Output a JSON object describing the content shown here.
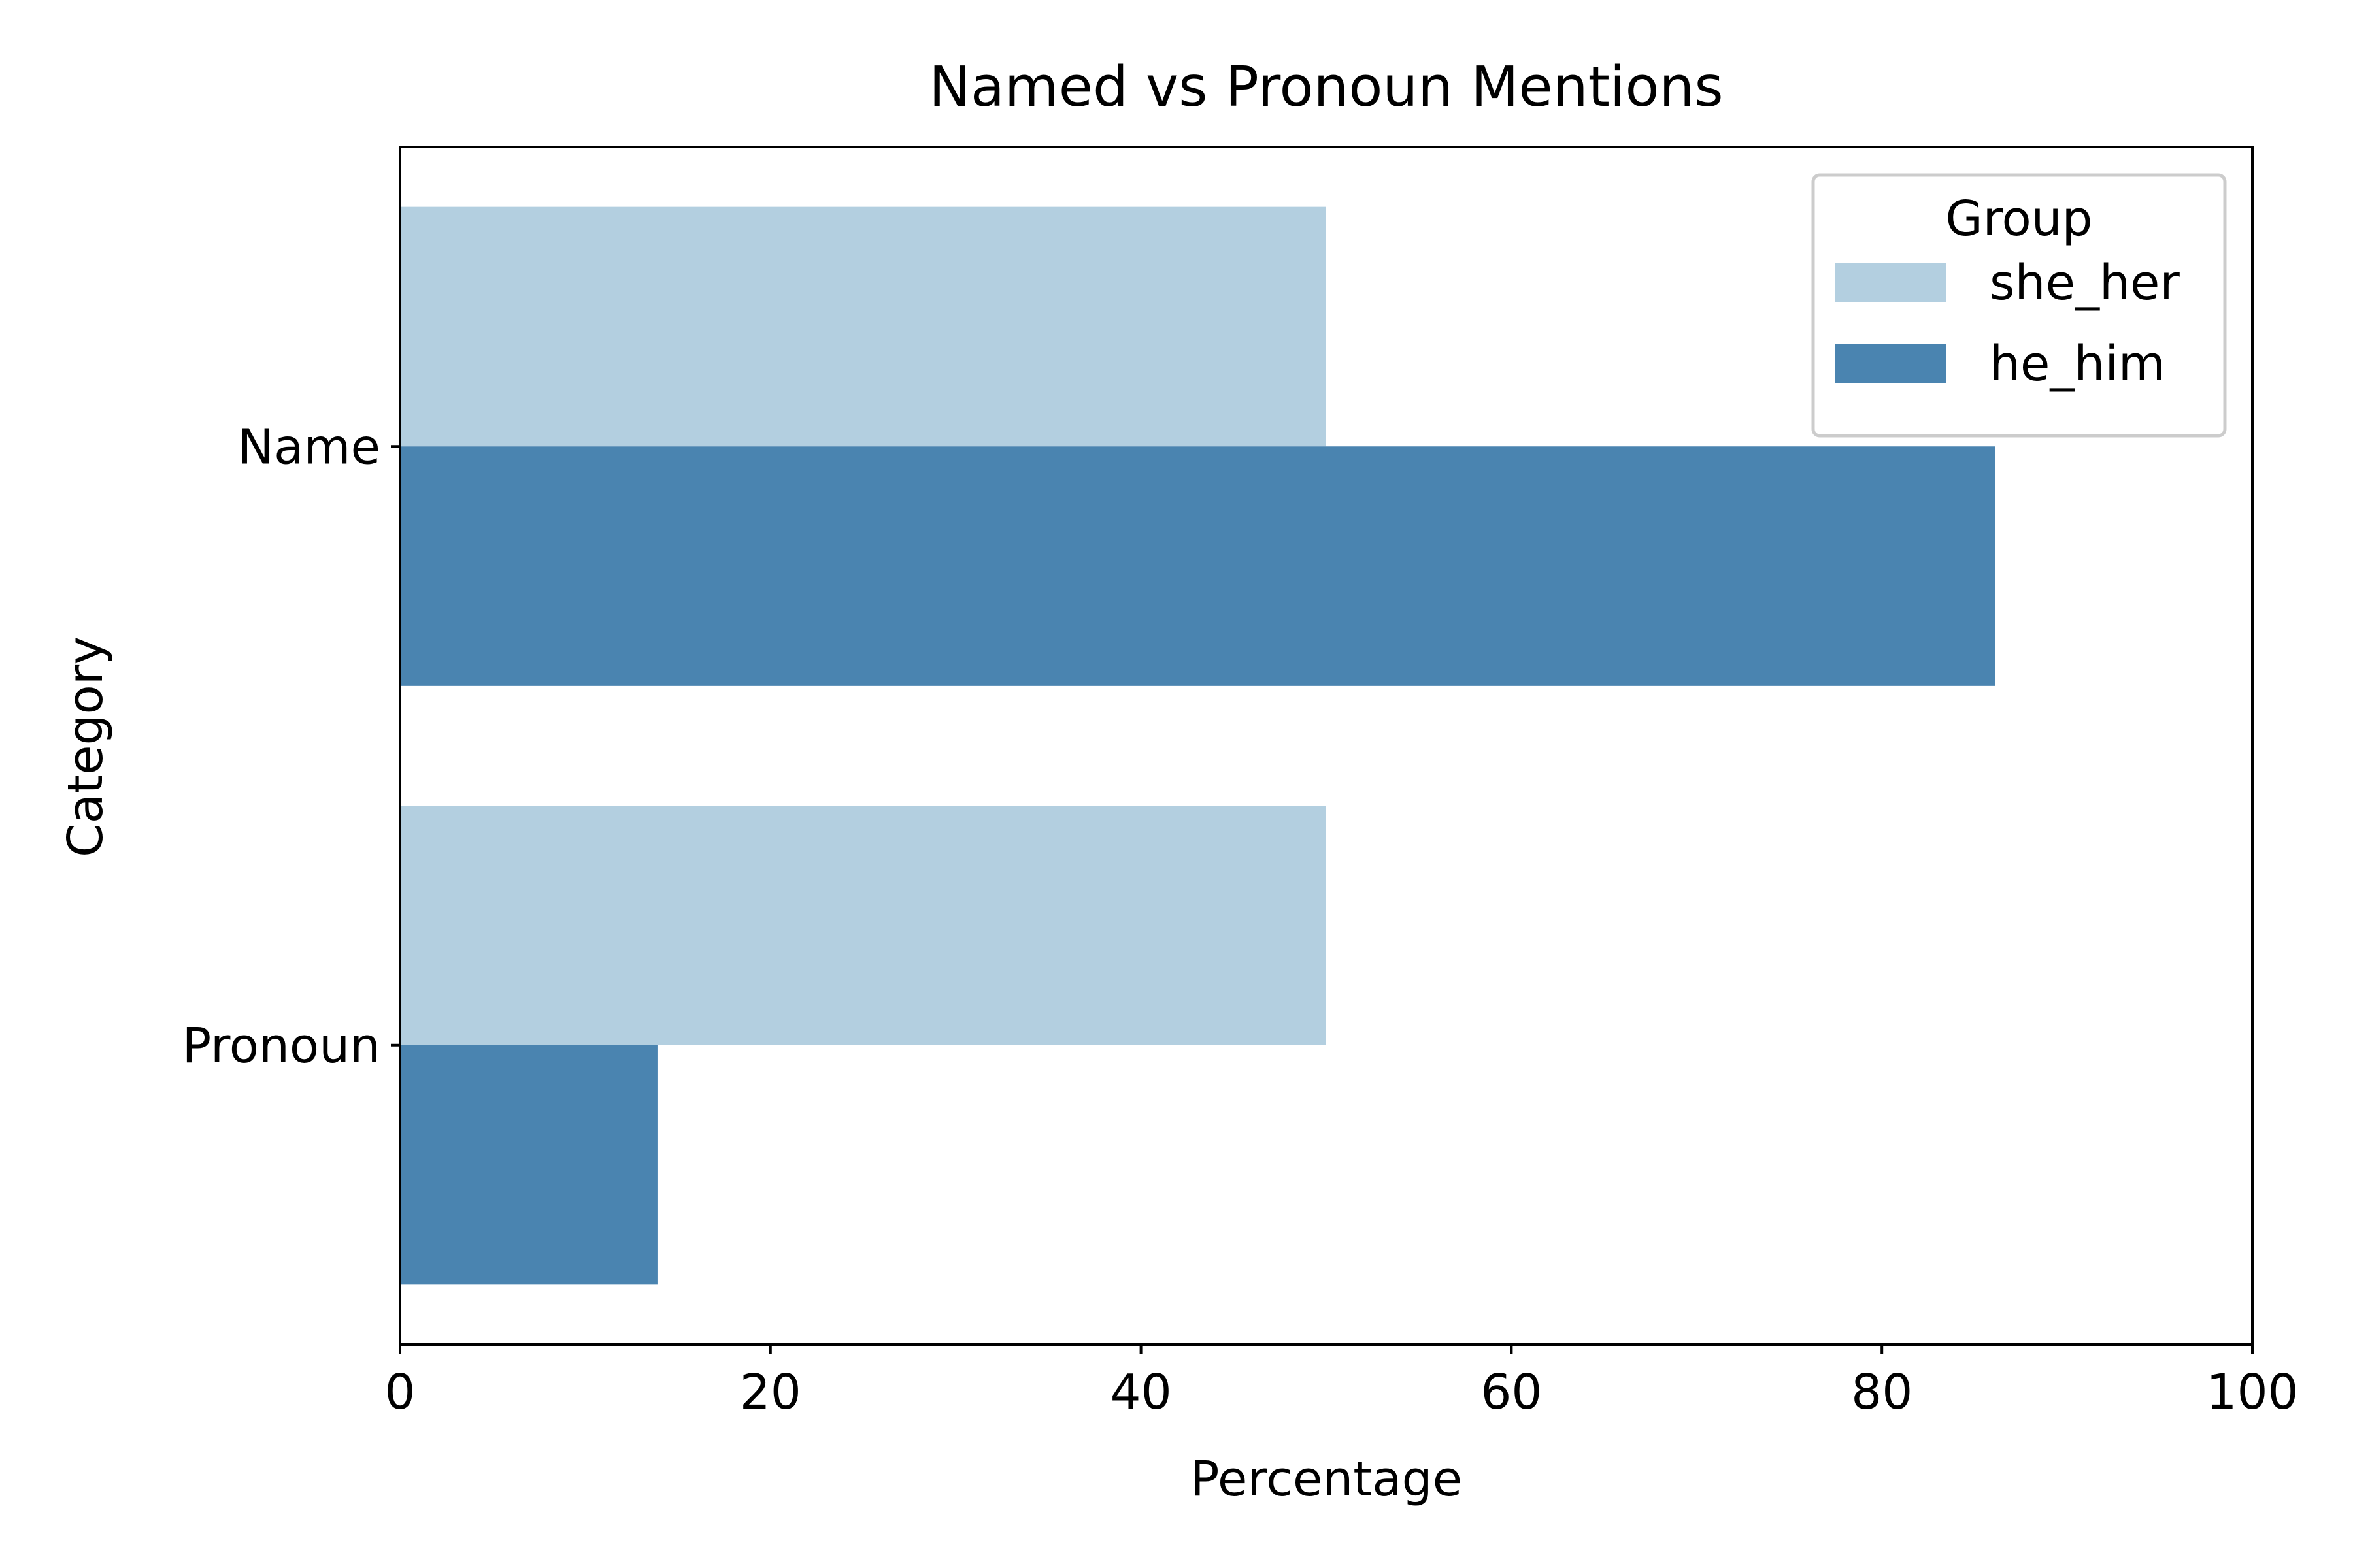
{
  "chart_data": {
    "type": "bar",
    "orientation": "horizontal",
    "title": "Named vs Pronoun Mentions",
    "xlabel": "Percentage",
    "ylabel": "Category",
    "categories": [
      "Name",
      "Pronoun"
    ],
    "xlim": [
      0,
      100
    ],
    "xticks": [
      "0",
      "20",
      "40",
      "60",
      "80",
      "100"
    ],
    "grid": false,
    "legend": {
      "title": "Group",
      "position": "top-right"
    },
    "series": [
      {
        "name": "she_her",
        "color": "#b3cfe0",
        "values": [
          50.0,
          50.0
        ]
      },
      {
        "name": "he_him",
        "color": "#4a84b0",
        "values": [
          86.1,
          13.9
        ]
      }
    ]
  }
}
